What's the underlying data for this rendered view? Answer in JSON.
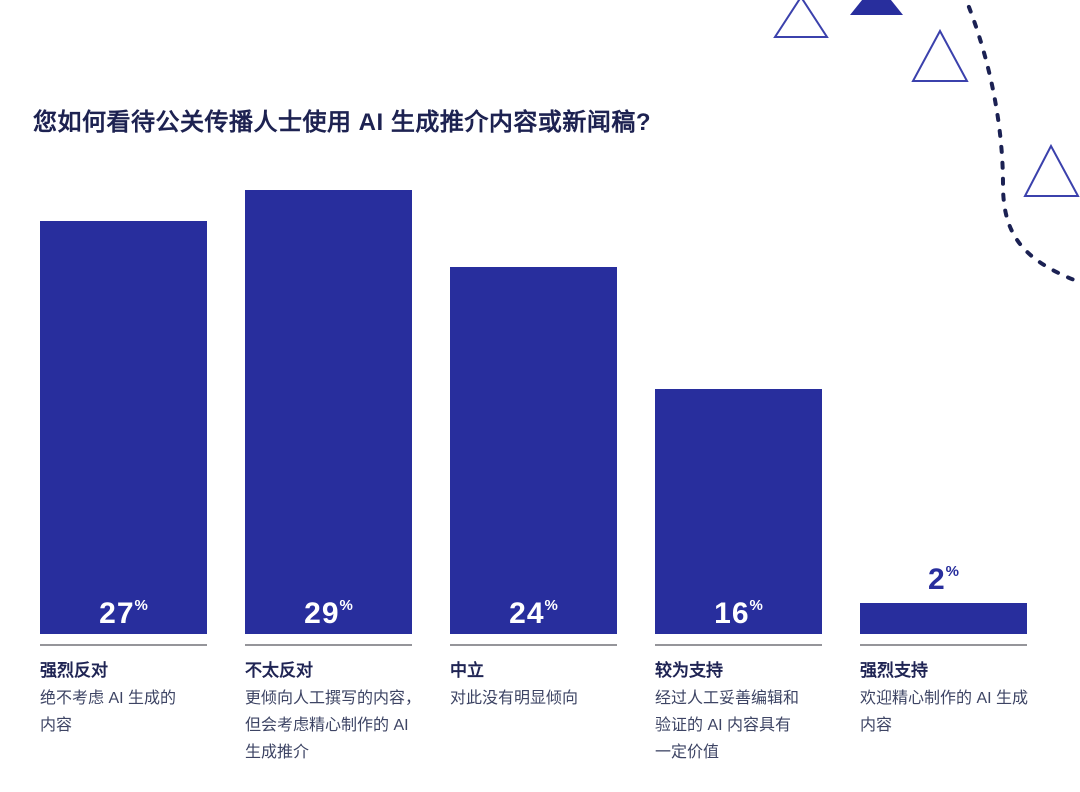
{
  "page": {
    "background": "#ffffff"
  },
  "chart_data": {
    "type": "bar",
    "title": "您如何看待公关传播人士使用 AI 生成推介内容或新闻稿?",
    "unit": "%",
    "categories": [
      "强烈反对",
      "不太反对",
      "中立",
      "较为支持",
      "强烈支持"
    ],
    "values": [
      27,
      29,
      24,
      16,
      2
    ],
    "descriptions": [
      "绝不考虑 AI 生成的\n内容",
      "更倾向人工撰写的内容，\n但会考虑精心制作的 AI\n生成推介",
      "对此没有明显倾向",
      "经过人工妥善编辑和\n验证的 AI 内容具有\n一定价值",
      "欢迎精心制作的 AI 生成\n内容"
    ],
    "ylim": [
      0,
      29
    ],
    "grid": false,
    "legend": "none",
    "value_label_position": "inside-bottom; outside-top when bar is too short"
  },
  "colors": {
    "bar": "#282e9d",
    "title_text": "#1d2251",
    "category_text": "#1f2454",
    "description_text": "#3d4464",
    "separator": "#95959a",
    "value_inside": "#ffffff",
    "value_outside": "#282e9d",
    "triangle_outline": "#3b41ac",
    "dotted_curve": "#1b2153"
  }
}
